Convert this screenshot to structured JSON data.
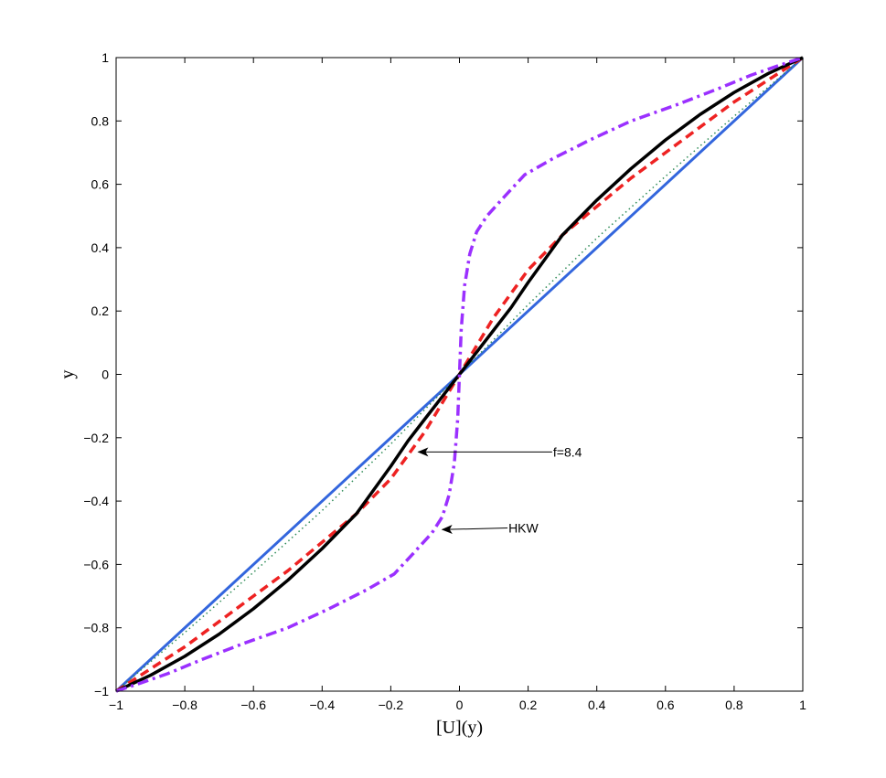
{
  "chart_data": {
    "type": "line",
    "title": "",
    "xlabel": "[U](y)",
    "ylabel": "y",
    "xlim": [
      -1,
      1
    ],
    "ylim": [
      -1,
      1
    ],
    "xticks": [
      -1,
      -0.8,
      -0.6,
      -0.4,
      -0.2,
      0,
      0.2,
      0.4,
      0.6,
      0.8,
      1
    ],
    "yticks": [
      -1,
      -0.8,
      -0.6,
      -0.4,
      -0.2,
      0,
      0.2,
      0.4,
      0.6,
      0.8,
      1
    ],
    "xtick_labels": [
      "−1",
      "−0.8",
      "−0.6",
      "−0.4",
      "−0.2",
      "0",
      "0.2",
      "0.4",
      "0.6",
      "0.8",
      "1"
    ],
    "ytick_labels": [
      "−1",
      "−0.8",
      "−0.6",
      "−0.4",
      "−0.2",
      "0",
      "0.2",
      "0.4",
      "0.6",
      "0.8",
      "1"
    ],
    "grid": false,
    "legend": "none",
    "series": [
      {
        "color": "#3366dd",
        "style": "solid",
        "x": [
          -1,
          -0.5,
          0,
          0.5,
          1
        ],
        "y": [
          -1,
          -0.5,
          0,
          0.5,
          1
        ]
      },
      {
        "color": "#2e8b57",
        "style": "dotted",
        "x": [
          -1,
          -0.8,
          -0.6,
          -0.4,
          -0.2,
          0,
          0.2,
          0.4,
          0.6,
          0.8,
          1
        ],
        "y": [
          -1,
          -0.815,
          -0.625,
          -0.43,
          -0.22,
          0,
          0.22,
          0.43,
          0.625,
          0.815,
          1
        ]
      },
      {
        "color": "#ee2222",
        "style": "dashed",
        "x": [
          -1,
          -0.9,
          -0.8,
          -0.7,
          -0.6,
          -0.5,
          -0.4,
          -0.3,
          -0.2,
          -0.1,
          0,
          0.1,
          0.2,
          0.3,
          0.4,
          0.5,
          0.6,
          0.7,
          0.8,
          0.9,
          1
        ],
        "y": [
          -1,
          -0.93,
          -0.86,
          -0.78,
          -0.7,
          -0.62,
          -0.53,
          -0.44,
          -0.33,
          -0.18,
          0,
          0.18,
          0.33,
          0.44,
          0.53,
          0.62,
          0.7,
          0.78,
          0.86,
          0.93,
          1
        ]
      },
      {
        "color": "#000000",
        "style": "solid-thick",
        "x": [
          -1,
          -0.9,
          -0.8,
          -0.7,
          -0.6,
          -0.5,
          -0.4,
          -0.3,
          -0.2,
          -0.15,
          -0.1,
          -0.05,
          0,
          0.05,
          0.1,
          0.15,
          0.2,
          0.3,
          0.4,
          0.5,
          0.6,
          0.7,
          0.8,
          0.9,
          1
        ],
        "y": [
          -1,
          -0.95,
          -0.89,
          -0.82,
          -0.74,
          -0.65,
          -0.55,
          -0.44,
          -0.29,
          -0.21,
          -0.14,
          -0.07,
          0,
          0.07,
          0.14,
          0.21,
          0.29,
          0.44,
          0.55,
          0.65,
          0.74,
          0.82,
          0.89,
          0.95,
          1
        ]
      },
      {
        "color": "#9b30ff",
        "style": "dashdot",
        "x": [
          -1,
          -0.93,
          -0.85,
          -0.75,
          -0.63,
          -0.5,
          -0.38,
          -0.27,
          -0.19,
          -0.13,
          -0.08,
          -0.05,
          -0.03,
          -0.015,
          -0.005,
          0,
          0.005,
          0.015,
          0.03,
          0.05,
          0.08,
          0.13,
          0.19,
          0.27,
          0.38,
          0.5,
          0.63,
          0.75,
          0.85,
          0.93,
          1
        ],
        "y": [
          -1,
          -0.975,
          -0.945,
          -0.9,
          -0.85,
          -0.8,
          -0.74,
          -0.68,
          -0.63,
          -0.56,
          -0.5,
          -0.45,
          -0.38,
          -0.28,
          -0.14,
          0,
          0.14,
          0.28,
          0.38,
          0.45,
          0.5,
          0.56,
          0.63,
          0.68,
          0.74,
          0.8,
          0.85,
          0.9,
          0.945,
          0.975,
          1
        ]
      }
    ],
    "annotations": [
      {
        "text": "f=8.4",
        "from": [
          0.27,
          -0.245
        ],
        "to": [
          -0.12,
          -0.245
        ]
      },
      {
        "text": "HKW",
        "from": [
          0.14,
          -0.485
        ],
        "to": [
          -0.05,
          -0.49
        ]
      }
    ]
  }
}
